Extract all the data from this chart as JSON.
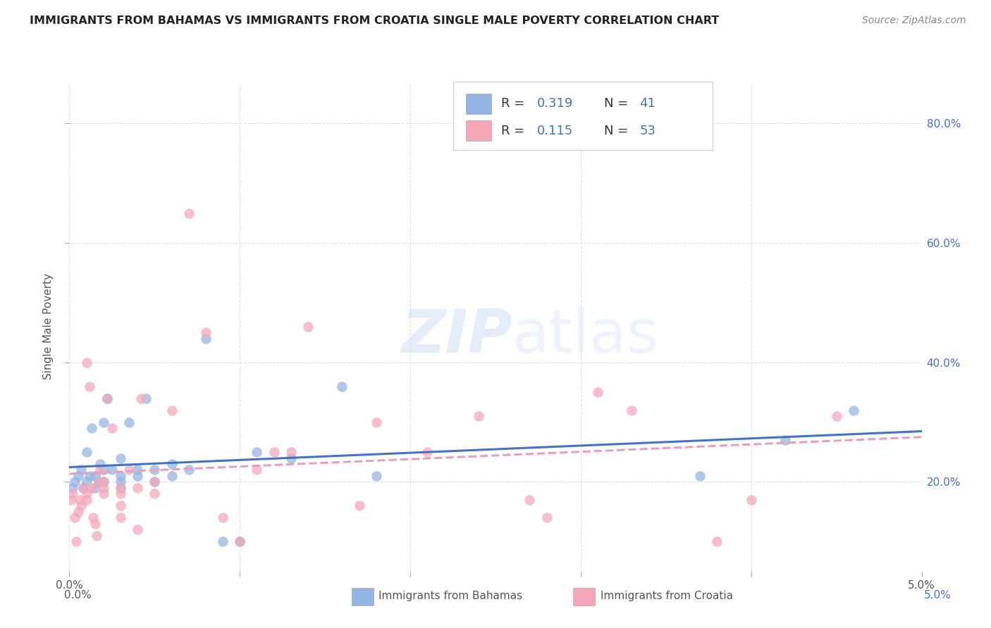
{
  "title": "IMMIGRANTS FROM BAHAMAS VS IMMIGRANTS FROM CROATIA SINGLE MALE POVERTY CORRELATION CHART",
  "source": "Source: ZipAtlas.com",
  "ylabel": "Single Male Poverty",
  "legend_label1": "Immigrants from Bahamas",
  "legend_label2": "Immigrants from Croatia",
  "color_bahamas": "#92b4e3",
  "color_croatia": "#f4a7b9",
  "trendline_color_bahamas": "#4472c4",
  "trendline_color_croatia": "#e8a0b8",
  "background_color": "#ffffff",
  "title_color": "#222222",
  "source_color": "#888888",
  "grid_color": "#e0e0e0",
  "watermark": "ZIPatlas",
  "xmin": 0.0,
  "xmax": 0.05,
  "ymin": 0.05,
  "ymax": 0.87,
  "y_ticks": [
    0.2,
    0.4,
    0.6,
    0.8
  ],
  "x_ticks": [
    0.0,
    0.01,
    0.02,
    0.03,
    0.04,
    0.05
  ],
  "bahamas_x": [
    0.0002,
    0.0003,
    0.0005,
    0.0007,
    0.0008,
    0.001,
    0.001,
    0.0012,
    0.0013,
    0.0015,
    0.0015,
    0.0017,
    0.0018,
    0.002,
    0.002,
    0.002,
    0.0022,
    0.0025,
    0.003,
    0.003,
    0.003,
    0.003,
    0.0035,
    0.004,
    0.004,
    0.0045,
    0.005,
    0.005,
    0.006,
    0.006,
    0.007,
    0.008,
    0.009,
    0.01,
    0.011,
    0.013,
    0.016,
    0.018,
    0.037,
    0.042,
    0.046
  ],
  "bahamas_y": [
    0.19,
    0.2,
    0.21,
    0.22,
    0.19,
    0.2,
    0.25,
    0.21,
    0.29,
    0.19,
    0.21,
    0.2,
    0.23,
    0.2,
    0.22,
    0.3,
    0.34,
    0.22,
    0.2,
    0.21,
    0.24,
    0.19,
    0.3,
    0.21,
    0.22,
    0.34,
    0.22,
    0.2,
    0.21,
    0.23,
    0.22,
    0.44,
    0.1,
    0.1,
    0.25,
    0.24,
    0.36,
    0.21,
    0.21,
    0.27,
    0.32
  ],
  "croatia_x": [
    0.0001,
    0.0002,
    0.0003,
    0.0004,
    0.0005,
    0.0006,
    0.0007,
    0.0008,
    0.001,
    0.001,
    0.001,
    0.0012,
    0.0013,
    0.0014,
    0.0015,
    0.0016,
    0.0017,
    0.0018,
    0.002,
    0.002,
    0.002,
    0.0022,
    0.0025,
    0.003,
    0.003,
    0.003,
    0.003,
    0.0035,
    0.004,
    0.004,
    0.0042,
    0.005,
    0.005,
    0.006,
    0.007,
    0.008,
    0.009,
    0.01,
    0.011,
    0.012,
    0.013,
    0.014,
    0.017,
    0.018,
    0.021,
    0.024,
    0.027,
    0.028,
    0.031,
    0.033,
    0.038,
    0.04,
    0.045
  ],
  "croatia_y": [
    0.17,
    0.18,
    0.14,
    0.1,
    0.15,
    0.17,
    0.16,
    0.19,
    0.17,
    0.18,
    0.4,
    0.36,
    0.19,
    0.14,
    0.13,
    0.11,
    0.2,
    0.22,
    0.18,
    0.19,
    0.2,
    0.34,
    0.29,
    0.19,
    0.18,
    0.14,
    0.16,
    0.22,
    0.12,
    0.19,
    0.34,
    0.18,
    0.2,
    0.32,
    0.65,
    0.45,
    0.14,
    0.1,
    0.22,
    0.25,
    0.25,
    0.46,
    0.16,
    0.3,
    0.25,
    0.31,
    0.17,
    0.14,
    0.35,
    0.32,
    0.1,
    0.17,
    0.31
  ]
}
